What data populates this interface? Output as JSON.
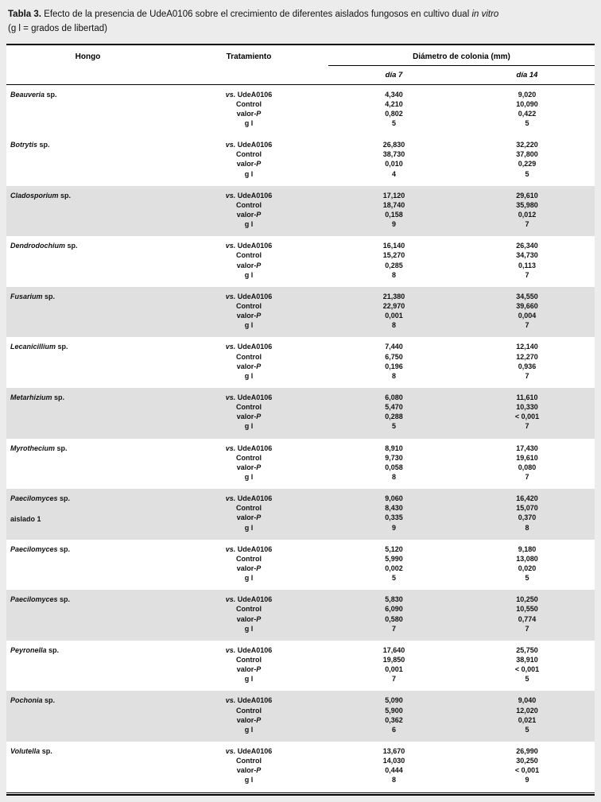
{
  "caption": {
    "label": "Tabla 3.",
    "text": " Efecto de la presencia de UdeA0106 sobre el crecimiento de diferentes aislados fungosos en cultivo dual ",
    "italic": "in vitro",
    "line2": "(g l = grados de libertad)"
  },
  "table": {
    "headers": {
      "hongo": "Hongo",
      "tratamiento": "Tratamiento",
      "diametro": "Diámetro de colonia (mm)",
      "dia7": "día 7",
      "dia14": "día 14"
    },
    "treatment_labels": [
      {
        "italic_prefix": "vs.",
        "text": " UdeA0106"
      },
      {
        "text": "Control"
      },
      {
        "text": "valor-",
        "italic_suffix": "P"
      },
      {
        "text": "g l"
      }
    ],
    "rows": [
      {
        "genus": "Beauveria",
        "suffix": "sp.",
        "note": "",
        "shaded": false,
        "dia7": [
          "4,340",
          "4,210",
          "0,802",
          "5"
        ],
        "dia14": [
          "9,020",
          "10,090",
          "0,422",
          "5"
        ]
      },
      {
        "genus": "Botrytis",
        "suffix": "sp.",
        "note": "",
        "shaded": false,
        "dia7": [
          "26,830",
          "38,730",
          "0,010",
          "4"
        ],
        "dia14": [
          "32,220",
          "37,800",
          "0,229",
          "5"
        ]
      },
      {
        "genus": "Cladosporium",
        "suffix": "sp.",
        "note": "",
        "shaded": true,
        "dia7": [
          "17,120",
          "18,740",
          "0,158",
          "9"
        ],
        "dia14": [
          "29,610",
          "35,980",
          "0,012",
          "7"
        ]
      },
      {
        "genus": "Dendrodochium",
        "suffix": "sp.",
        "note": "",
        "shaded": false,
        "dia7": [
          "16,140",
          "15,270",
          "0,285",
          "8"
        ],
        "dia14": [
          "26,340",
          "34,730",
          "0,113",
          "7"
        ]
      },
      {
        "genus": "Fusarium",
        "suffix": "sp.",
        "note": "",
        "shaded": true,
        "dia7": [
          "21,380",
          "22,970",
          "0,001",
          "8"
        ],
        "dia14": [
          "34,550",
          "39,660",
          "0,004",
          "7"
        ]
      },
      {
        "genus": "Lecanicillium",
        "suffix": "sp.",
        "note": "",
        "shaded": false,
        "dia7": [
          "7,440",
          "6,750",
          "0,196",
          "8"
        ],
        "dia14": [
          "12,140",
          "12,270",
          "0,936",
          "7"
        ]
      },
      {
        "genus": "Metarhizium",
        "suffix": "sp.",
        "note": "",
        "shaded": true,
        "dia7": [
          "6,080",
          "5,470",
          "0,288",
          "5"
        ],
        "dia14": [
          "11,610",
          "10,330",
          "< 0,001",
          "7"
        ]
      },
      {
        "genus": "Myrothecium",
        "suffix": "sp.",
        "note": "",
        "shaded": false,
        "dia7": [
          "8,910",
          "9,730",
          "0,058",
          "8"
        ],
        "dia14": [
          "17,430",
          "19,610",
          "0,080",
          "7"
        ]
      },
      {
        "genus": "Paecilomyces",
        "suffix": "sp.",
        "note": "aislado 1",
        "shaded": true,
        "dia7": [
          "9,060",
          "8,430",
          "0,335",
          "9"
        ],
        "dia14": [
          "16,420",
          "15,070",
          "0,370",
          "8"
        ]
      },
      {
        "genus": "Paecilomyces",
        "suffix": "sp.",
        "note": "",
        "shaded": false,
        "dia7": [
          "5,120",
          "5,990",
          "0,002",
          "5"
        ],
        "dia14": [
          "9,180",
          "13,080",
          "0,020",
          "5"
        ]
      },
      {
        "genus": "Paecilomyces",
        "suffix": "sp.",
        "note": "",
        "shaded": true,
        "dia7": [
          "5,830",
          "6,090",
          "0,580",
          "7"
        ],
        "dia14": [
          "10,250",
          "10,550",
          "0,774",
          "7"
        ]
      },
      {
        "genus": "Peyronella",
        "suffix": "sp.",
        "note": "",
        "shaded": false,
        "dia7": [
          "17,640",
          "19,850",
          "0,001",
          "7"
        ],
        "dia14": [
          "25,750",
          "38,910",
          "< 0,001",
          "5"
        ]
      },
      {
        "genus": "Pochonia",
        "suffix": "sp.",
        "note": "",
        "shaded": true,
        "dia7": [
          "5,090",
          "5,900",
          "0,362",
          "6"
        ],
        "dia14": [
          "9,040",
          "12,020",
          "0,021",
          "5"
        ]
      },
      {
        "genus": "Volutella",
        "suffix": "sp.",
        "note": "",
        "shaded": false,
        "dia7": [
          "13,670",
          "14,030",
          "0,444",
          "8"
        ],
        "dia14": [
          "26,990",
          "30,250",
          "< 0,001",
          "9"
        ]
      }
    ]
  },
  "colors": {
    "page_bg": "#ececec",
    "row_shade": "#e0e0e0",
    "border": "#000000",
    "text": "#111111"
  }
}
